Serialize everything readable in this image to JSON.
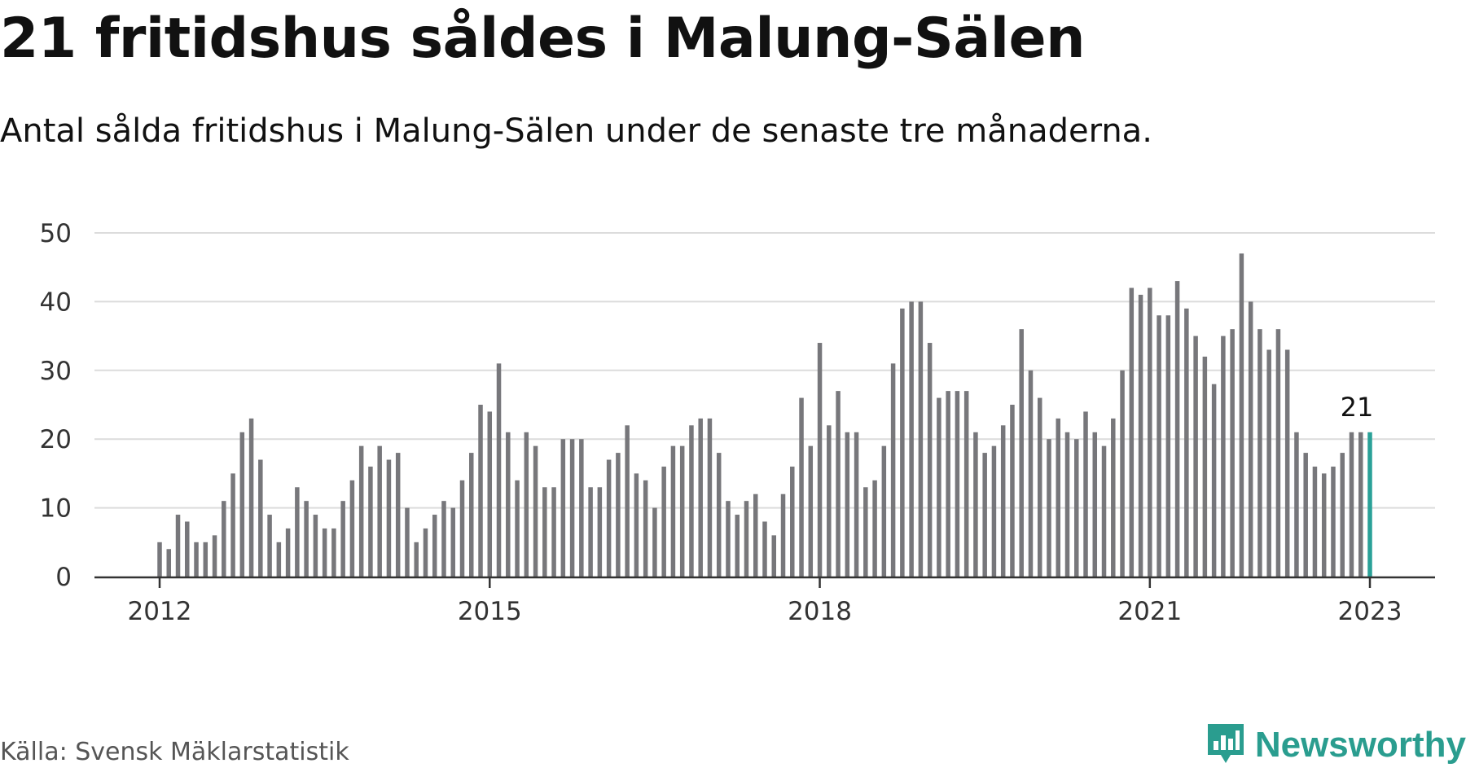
{
  "title": "21 fritidshus såldes i Malung-Sälen",
  "subtitle": "Antal sålda fritidshus i Malung-Sälen under de senaste tre månaderna.",
  "source": "Källa: Svensk Mäklarstatistik",
  "brand": {
    "name": "Newsworthy",
    "icon": "newsworthy-logo-icon",
    "color": "#2a9d8f"
  },
  "colors": {
    "bar": "#77777b",
    "highlight": "#2aa198",
    "grid": "#dcdcdc",
    "axis": "#333333"
  },
  "chart_data": {
    "type": "bar",
    "title": "21 fritidshus såldes i Malung-Sälen",
    "subtitle": "Antal sålda fritidshus i Malung-Sälen under de senaste tre månaderna.",
    "xlabel": "",
    "ylabel": "",
    "ylim": [
      0,
      50
    ],
    "yticks": [
      0,
      10,
      20,
      30,
      40,
      50
    ],
    "xticks": [
      {
        "label": "2012",
        "index": 0
      },
      {
        "label": "2015",
        "index": 36
      },
      {
        "label": "2018",
        "index": 72
      },
      {
        "label": "2021",
        "index": 108
      },
      {
        "label": "2023",
        "index": 132
      }
    ],
    "grid": true,
    "legend": "none",
    "highlight": {
      "index": 132,
      "label": "21"
    },
    "series": [
      {
        "values": [
          5,
          4,
          9,
          8,
          5,
          5,
          6,
          11,
          15,
          21,
          23,
          17,
          9,
          5,
          7,
          13,
          11,
          9,
          7,
          7,
          11,
          14,
          19,
          16,
          19,
          17,
          18,
          10,
          5,
          7,
          9,
          11,
          10,
          14,
          18,
          25,
          24,
          31,
          21,
          14,
          21,
          19,
          13,
          13,
          20,
          20,
          20,
          13,
          13,
          17,
          18,
          22,
          15,
          14,
          10,
          16,
          19,
          19,
          22,
          23,
          23,
          18,
          11,
          9,
          11,
          12,
          8,
          6,
          12,
          16,
          26,
          19,
          34,
          22,
          27,
          21,
          21,
          13,
          14,
          19,
          31,
          39,
          40,
          40,
          34,
          26,
          27,
          27,
          27,
          21,
          18,
          19,
          22,
          25,
          36,
          30,
          26,
          20,
          23,
          21,
          20,
          24,
          21,
          19,
          23,
          30,
          42,
          41,
          42,
          38,
          38,
          43,
          39,
          35,
          32,
          28,
          35,
          36,
          47,
          40,
          36,
          33,
          36,
          33,
          21,
          18,
          16,
          15,
          16,
          18,
          21,
          21,
          21
        ]
      }
    ]
  }
}
